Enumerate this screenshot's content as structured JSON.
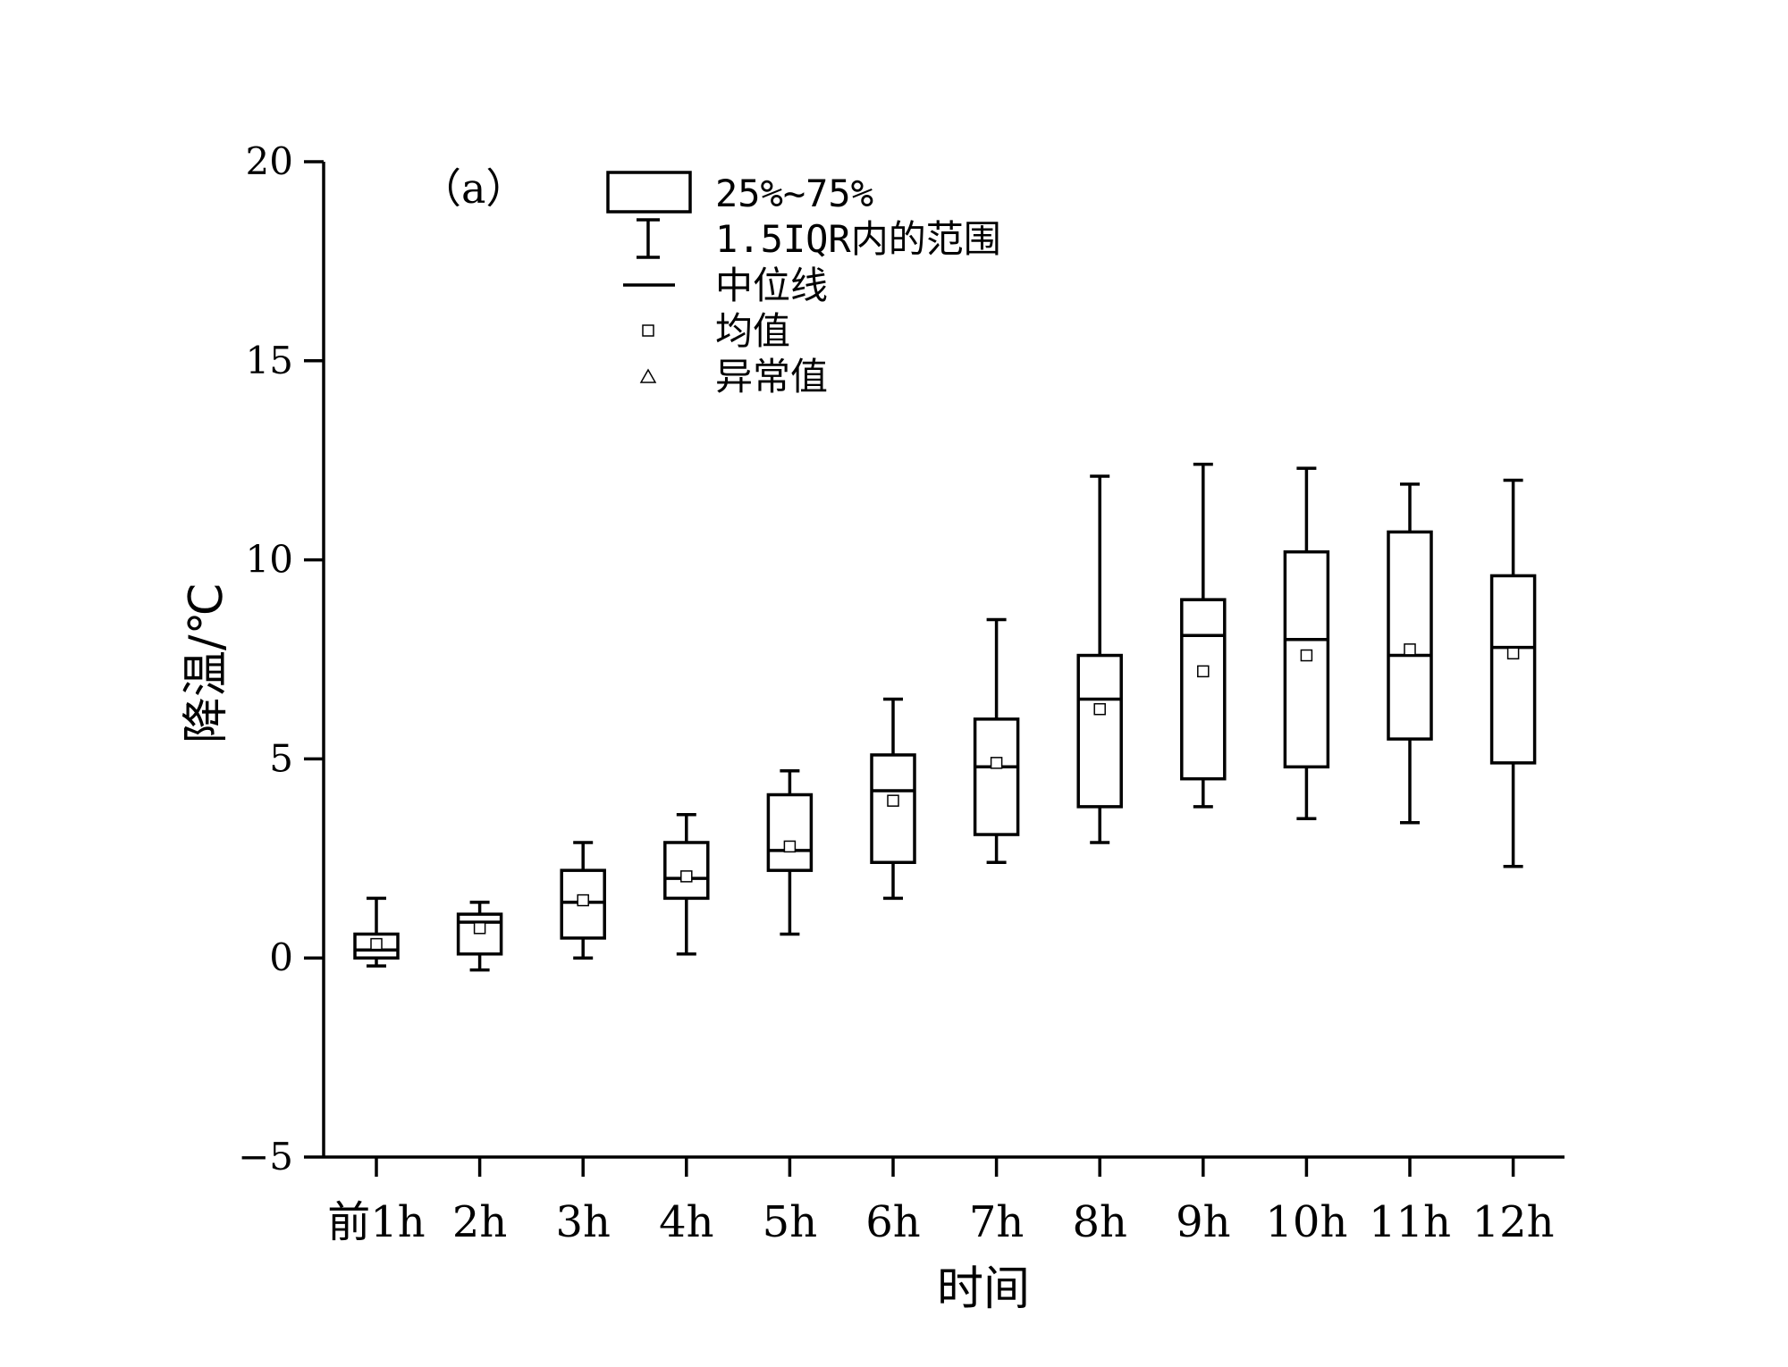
{
  "chart_data": {
    "type": "boxplot",
    "panel_label": "（a）",
    "xlabel": "时间",
    "ylabel": "降温/℃",
    "ylim": [
      -5,
      20
    ],
    "yticks": [
      -5,
      0,
      5,
      10,
      15,
      20
    ],
    "ytick_labels": [
      "−5",
      "0",
      "5",
      "10",
      "15",
      "20"
    ],
    "categories": [
      "前1h",
      "2h",
      "3h",
      "4h",
      "5h",
      "6h",
      "7h",
      "8h",
      "9h",
      "10h",
      "11h",
      "12h"
    ],
    "boxes": [
      {
        "whisker_low": -0.2,
        "q1": 0.0,
        "median": 0.2,
        "q3": 0.6,
        "whisker_high": 1.5,
        "mean": 0.35
      },
      {
        "whisker_low": -0.3,
        "q1": 0.1,
        "median": 0.9,
        "q3": 1.1,
        "whisker_high": 1.4,
        "mean": 0.75
      },
      {
        "whisker_low": 0.0,
        "q1": 0.5,
        "median": 1.4,
        "q3": 2.2,
        "whisker_high": 2.9,
        "mean": 1.45
      },
      {
        "whisker_low": 0.1,
        "q1": 1.5,
        "median": 2.0,
        "q3": 2.9,
        "whisker_high": 3.6,
        "mean": 2.05
      },
      {
        "whisker_low": 0.6,
        "q1": 2.2,
        "median": 2.7,
        "q3": 4.1,
        "whisker_high": 4.7,
        "mean": 2.8
      },
      {
        "whisker_low": 1.5,
        "q1": 2.4,
        "median": 4.2,
        "q3": 5.1,
        "whisker_high": 6.5,
        "mean": 3.95
      },
      {
        "whisker_low": 2.4,
        "q1": 3.1,
        "median": 4.8,
        "q3": 6.0,
        "whisker_high": 8.5,
        "mean": 4.9
      },
      {
        "whisker_low": 2.9,
        "q1": 3.8,
        "median": 6.5,
        "q3": 7.6,
        "whisker_high": 12.1,
        "mean": 6.25
      },
      {
        "whisker_low": 3.8,
        "q1": 4.5,
        "median": 8.1,
        "q3": 9.0,
        "whisker_high": 12.4,
        "mean": 7.2
      },
      {
        "whisker_low": 3.5,
        "q1": 4.8,
        "median": 8.0,
        "q3": 10.2,
        "whisker_high": 12.3,
        "mean": 7.6
      },
      {
        "whisker_low": 3.4,
        "q1": 5.5,
        "median": 7.6,
        "q3": 10.7,
        "whisker_high": 11.9,
        "mean": 7.75
      },
      {
        "whisker_low": 2.3,
        "q1": 4.9,
        "median": 7.8,
        "q3": 9.6,
        "whisker_high": 12.0,
        "mean": 7.65
      }
    ],
    "legend": {
      "position": "top-center",
      "items": [
        {
          "marker": "box",
          "label": "25%~75%"
        },
        {
          "marker": "whisker",
          "label": "1.5IQR内的范围"
        },
        {
          "marker": "median-line",
          "label": "中位线"
        },
        {
          "marker": "mean-square",
          "label": "均值"
        },
        {
          "marker": "outlier-triangle",
          "label": "异常值"
        }
      ]
    }
  }
}
